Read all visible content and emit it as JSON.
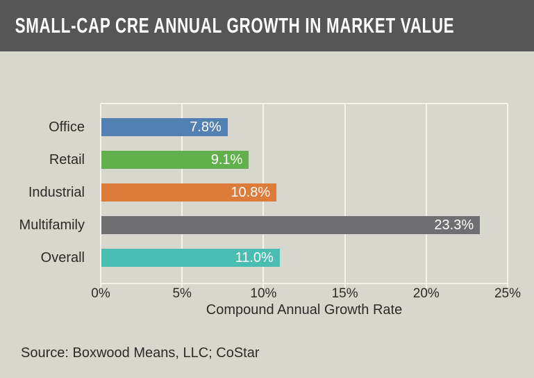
{
  "header": {
    "title": "SMALL-CAP CRE ANNUAL GROWTH IN MARKET VALUE",
    "bg": "#575656",
    "text_color": "#FFFFFF"
  },
  "source_note": "Source: Boxwood Means, LLC; CoStar",
  "colors": {
    "page_bg": "#D8D7CE",
    "grid": "#F4F3EE",
    "text": "#2B2A28",
    "bar_label": "#FFFFFF"
  },
  "chart_data": {
    "type": "bar",
    "orientation": "horizontal",
    "title": "SMALL-CAP CRE ANNUAL GROWTH IN MARKET VALUE",
    "categories": [
      "Office",
      "Retail",
      "Industrial",
      "Multifamily",
      "Overall"
    ],
    "values": [
      7.8,
      9.1,
      10.8,
      23.3,
      11.0
    ],
    "value_labels": [
      "7.8%",
      "9.1%",
      "10.8%",
      "23.3%",
      "11.0%"
    ],
    "bar_colors": [
      "#5380B2",
      "#61B04C",
      "#DD7B3A",
      "#6F6F71",
      "#49BDB2"
    ],
    "xlabel": "Compound Annual Growth Rate",
    "ylabel": "",
    "x_ticks": [
      0,
      5,
      10,
      15,
      20,
      25
    ],
    "x_tick_labels": [
      "0%",
      "5%",
      "10%",
      "15%",
      "20%",
      "25%"
    ],
    "xlim": [
      0,
      25
    ],
    "grid": true,
    "legend": false
  }
}
